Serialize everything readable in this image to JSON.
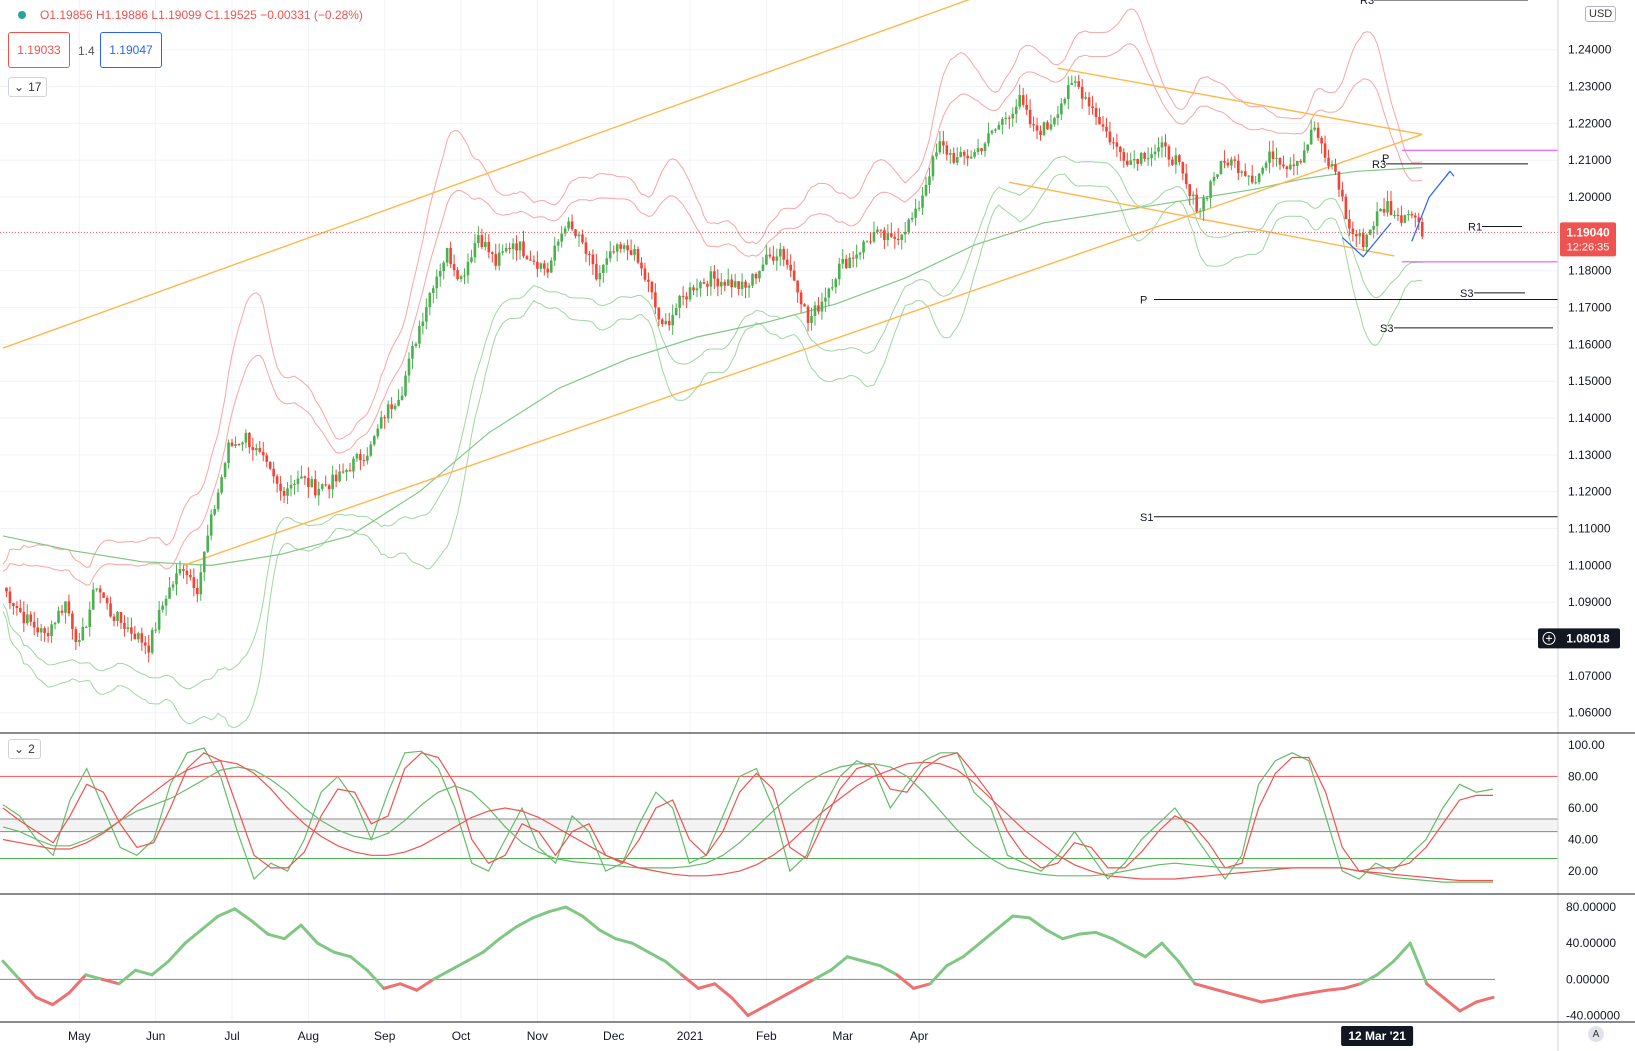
{
  "header": {
    "ohlc_text": "O1.19856 H1.19886 L1.19099 C1.19525 −0.00331 (−0.28%)",
    "sell_price": "1.19033",
    "spread": "1.4",
    "buy_price": "1.19047",
    "indicator_count_main": "17",
    "indicator_count_osc": "2",
    "currency": "USD",
    "auto_label": "A"
  },
  "price_axis": {
    "ticks": [
      "1.24000",
      "1.23000",
      "1.22000",
      "1.21000",
      "1.20000",
      "1.19000",
      "1.18000",
      "1.17000",
      "1.16000",
      "1.15000",
      "1.14000",
      "1.13000",
      "1.12000",
      "1.11000",
      "1.10000",
      "1.09000",
      "1.08000",
      "1.07000",
      "1.06000"
    ],
    "last_price": "1.19040",
    "countdown": "12:26:35",
    "crosshair_price": "1.08018"
  },
  "osc1_axis": {
    "ticks": [
      "100.00",
      "80.00",
      "60.00",
      "40.00",
      "20.00"
    ]
  },
  "osc2_axis": {
    "ticks": [
      "80.00000",
      "40.00000",
      "0.00000",
      "-40.00000"
    ]
  },
  "time_axis": {
    "labels": [
      "May",
      "Jun",
      "Jul",
      "Aug",
      "Sep",
      "Oct",
      "Nov",
      "Dec",
      "2021",
      "Feb",
      "Mar",
      "Apr"
    ],
    "crosshair_date": "12 Mar '21"
  },
  "pivot_labels": {
    "r3_top": "R3",
    "p_right": "P",
    "r3_right": "R3",
    "r1_right": "R1",
    "s3_right": "S3",
    "p_left": "P",
    "s3_left": "S3",
    "s1_left": "S1"
  },
  "colors": {
    "up": "#26a69a",
    "down": "#ef5350",
    "up_candle": "#4caf50",
    "down_candle": "#f44336",
    "trend": "#ffb74d",
    "magenta": "#e040fb",
    "blue": "#2962ff",
    "bb_upper": "#f7a6a6",
    "bb_lower": "#9fd7a1",
    "ma": "#81c784",
    "grid": "#f0f3fa"
  },
  "chart_data": [
    {
      "type": "candlestick",
      "title": "",
      "xlabel": "",
      "ylabel": "",
      "ylim": [
        1.0545,
        1.2535
      ],
      "x_months": [
        "May",
        "Jun",
        "Jul",
        "Aug",
        "Sep",
        "Oct",
        "Nov",
        "Dec",
        "2021",
        "Feb",
        "Mar",
        "Apr"
      ],
      "close_path": [
        [
          0,
          1.094
        ],
        [
          6,
          1.086
        ],
        [
          12,
          1.081
        ],
        [
          18,
          1.09
        ],
        [
          22,
          1.078
        ],
        [
          27,
          1.095
        ],
        [
          31,
          1.087
        ],
        [
          36,
          1.083
        ],
        [
          42,
          1.078
        ],
        [
          47,
          1.092
        ],
        [
          52,
          1.1
        ],
        [
          56,
          1.094
        ],
        [
          60,
          1.112
        ],
        [
          65,
          1.132
        ],
        [
          70,
          1.135
        ],
        [
          75,
          1.128
        ],
        [
          80,
          1.12
        ],
        [
          85,
          1.124
        ],
        [
          90,
          1.121
        ],
        [
          96,
          1.123
        ],
        [
          100,
          1.127
        ],
        [
          106,
          1.132
        ],
        [
          110,
          1.141
        ],
        [
          115,
          1.148
        ],
        [
          120,
          1.165
        ],
        [
          124,
          1.177
        ],
        [
          128,
          1.185
        ],
        [
          132,
          1.178
        ],
        [
          137,
          1.19
        ],
        [
          142,
          1.182
        ],
        [
          147,
          1.188
        ],
        [
          152,
          1.184
        ],
        [
          157,
          1.18
        ],
        [
          162,
          1.193
        ],
        [
          167,
          1.187
        ],
        [
          171,
          1.178
        ],
        [
          176,
          1.185
        ],
        [
          181,
          1.186
        ],
        [
          186,
          1.176
        ],
        [
          190,
          1.164
        ],
        [
          194,
          1.17
        ],
        [
          199,
          1.176
        ],
        [
          204,
          1.178
        ],
        [
          209,
          1.177
        ],
        [
          214,
          1.175
        ],
        [
          219,
          1.182
        ],
        [
          224,
          1.186
        ],
        [
          229,
          1.176
        ],
        [
          232,
          1.166
        ],
        [
          236,
          1.172
        ],
        [
          241,
          1.181
        ],
        [
          246,
          1.185
        ],
        [
          251,
          1.19
        ],
        [
          256,
          1.188
        ],
        [
          260,
          1.192
        ],
        [
          263,
          1.195
        ],
        [
          267,
          1.207
        ],
        [
          270,
          1.214
        ],
        [
          275,
          1.21
        ],
        [
          280,
          1.212
        ],
        [
          285,
          1.217
        ],
        [
          289,
          1.222
        ],
        [
          293,
          1.226
        ],
        [
          297,
          1.218
        ],
        [
          301,
          1.219
        ],
        [
          305,
          1.226
        ],
        [
          309,
          1.231
        ],
        [
          313,
          1.226
        ],
        [
          317,
          1.219
        ],
        [
          321,
          1.213
        ],
        [
          325,
          1.21
        ],
        [
          329,
          1.212
        ],
        [
          334,
          1.213
        ],
        [
          338,
          1.21
        ],
        [
          342,
          1.2
        ],
        [
          345,
          1.197
        ],
        [
          349,
          1.206
        ],
        [
          353,
          1.21
        ],
        [
          357,
          1.208
        ],
        [
          361,
          1.205
        ],
        [
          366,
          1.212
        ],
        [
          370,
          1.209
        ],
        [
          374,
          1.211
        ],
        [
          378,
          1.219
        ],
        [
          381,
          1.21
        ],
        [
          384,
          1.207
        ],
        [
          388,
          1.191
        ],
        [
          392,
          1.188
        ],
        [
          396,
          1.195
        ],
        [
          399,
          1.198
        ],
        [
          402,
          1.194
        ],
        [
          406,
          1.197
        ],
        [
          409,
          1.19
        ]
      ],
      "ma_path": [
        [
          0,
          1.108
        ],
        [
          20,
          1.104
        ],
        [
          40,
          1.101
        ],
        [
          60,
          1.1
        ],
        [
          80,
          1.103
        ],
        [
          100,
          1.108
        ],
        [
          120,
          1.12
        ],
        [
          140,
          1.136
        ],
        [
          160,
          1.148
        ],
        [
          180,
          1.156
        ],
        [
          200,
          1.162
        ],
        [
          220,
          1.166
        ],
        [
          240,
          1.171
        ],
        [
          260,
          1.178
        ],
        [
          280,
          1.187
        ],
        [
          300,
          1.193
        ],
        [
          320,
          1.196
        ],
        [
          340,
          1.199
        ],
        [
          360,
          1.202
        ],
        [
          375,
          1.205
        ],
        [
          390,
          1.207
        ],
        [
          409,
          1.208
        ]
      ],
      "trendlines": [
        {
          "from": [
            0,
            1.159
          ],
          "to": [
            409,
            1.298
          ]
        },
        {
          "from": [
            52,
            1.1
          ],
          "to": [
            409,
            1.217
          ]
        },
        {
          "from": [
            290,
            1.204
          ],
          "to": [
            401,
            1.184
          ]
        },
        {
          "from": [
            304,
            1.235
          ],
          "to": [
            409,
            1.217
          ]
        }
      ],
      "horizontal_levels": [
        {
          "label": "R3",
          "value": 1.2535
        },
        {
          "label": "R3",
          "value": 1.209
        },
        {
          "label": "R1",
          "value": 1.192
        },
        {
          "label": "S3",
          "value": 1.174
        },
        {
          "label": "P",
          "value": 1.1722
        },
        {
          "label": "S3",
          "value": 1.1645
        },
        {
          "label": "S1",
          "value": 1.1132
        }
      ],
      "magenta_levels": [
        1.2127,
        1.1824
      ],
      "last_price": 1.1904
    },
    {
      "type": "line",
      "title": "",
      "ylim": [
        8,
        105
      ],
      "ticks": [
        100,
        80,
        60,
        40,
        20
      ],
      "reference_lines": [
        80,
        53,
        45,
        28
      ],
      "series": [
        {
          "values": [
            62,
            55,
            40,
            30,
            65,
            85,
            60,
            35,
            30,
            40,
            75,
            95,
            98,
            80,
            45,
            15,
            25,
            20,
            40,
            70,
            80,
            65,
            40,
            70,
            95,
            96,
            85,
            60,
            25,
            20,
            40,
            60,
            35,
            25,
            55,
            45,
            20,
            25,
            50,
            70,
            60,
            25,
            30,
            55,
            80,
            85,
            60,
            20,
            30,
            60,
            80,
            90,
            85,
            60,
            75,
            90,
            95,
            95,
            70,
            60,
            30,
            25,
            20,
            30,
            45,
            30,
            15,
            25,
            40,
            50,
            60,
            45,
            30,
            15,
            30,
            75,
            90,
            95,
            90,
            55,
            20,
            15,
            25,
            20,
            30,
            40,
            60,
            75,
            70,
            72
          ]
        },
        {
          "values": [
            60,
            52,
            45,
            38,
            55,
            75,
            70,
            50,
            35,
            38,
            60,
            85,
            95,
            90,
            60,
            30,
            22,
            22,
            32,
            55,
            72,
            70,
            50,
            55,
            85,
            95,
            92,
            75,
            40,
            25,
            30,
            50,
            45,
            30,
            45,
            50,
            30,
            25,
            40,
            60,
            65,
            40,
            30,
            45,
            70,
            82,
            72,
            35,
            28,
            50,
            72,
            85,
            88,
            72,
            70,
            85,
            92,
            95,
            82,
            68,
            45,
            30,
            22,
            25,
            38,
            35,
            22,
            22,
            32,
            45,
            55,
            50,
            38,
            22,
            25,
            60,
            82,
            92,
            92,
            70,
            35,
            20,
            22,
            22,
            25,
            35,
            50,
            65,
            68,
            68
          ]
        },
        {
          "values": [
            48,
            45,
            40,
            36,
            36,
            40,
            45,
            52,
            58,
            62,
            66,
            72,
            78,
            84,
            86,
            84,
            78,
            70,
            60,
            52,
            46,
            42,
            40,
            44,
            52,
            62,
            70,
            74,
            70,
            60,
            48,
            38,
            32,
            28,
            26,
            25,
            24,
            23,
            22,
            22,
            22,
            23,
            25,
            30,
            38,
            48,
            58,
            68,
            76,
            82,
            86,
            88,
            88,
            86,
            80,
            70,
            58,
            46,
            36,
            28,
            22,
            20,
            18,
            17,
            17,
            17,
            18,
            20,
            22,
            24,
            25,
            24,
            23,
            22,
            22,
            22,
            22,
            22,
            22,
            22,
            22,
            20,
            18,
            16,
            15,
            14,
            13,
            13,
            13,
            13
          ]
        },
        {
          "values": [
            40,
            38,
            36,
            34,
            34,
            38,
            44,
            52,
            62,
            70,
            78,
            84,
            88,
            90,
            88,
            82,
            72,
            60,
            50,
            42,
            36,
            32,
            30,
            30,
            32,
            36,
            42,
            48,
            54,
            58,
            60,
            58,
            54,
            48,
            42,
            36,
            30,
            26,
            22,
            20,
            18,
            17,
            17,
            18,
            20,
            24,
            30,
            38,
            48,
            58,
            66,
            74,
            80,
            84,
            88,
            89,
            88,
            84,
            76,
            66,
            56,
            46,
            38,
            30,
            24,
            20,
            17,
            16,
            15,
            15,
            15,
            16,
            17,
            18,
            19,
            20,
            21,
            22,
            22,
            22,
            22,
            20,
            19,
            18,
            17,
            16,
            15,
            14,
            14,
            14
          ]
        }
      ]
    },
    {
      "type": "line",
      "title": "",
      "ylim": [
        -45,
        90
      ],
      "ticks": [
        80,
        40,
        0,
        -40
      ],
      "zero_line": 0,
      "values": [
        20,
        0,
        -20,
        -28,
        -15,
        5,
        0,
        -5,
        10,
        5,
        20,
        40,
        55,
        70,
        78,
        65,
        50,
        45,
        60,
        40,
        30,
        25,
        10,
        -10,
        -5,
        -12,
        0,
        10,
        20,
        30,
        45,
        58,
        68,
        75,
        80,
        70,
        55,
        45,
        40,
        30,
        20,
        5,
        -10,
        -5,
        -20,
        -40,
        -30,
        -20,
        -10,
        0,
        10,
        25,
        20,
        15,
        5,
        -10,
        -5,
        15,
        25,
        40,
        55,
        70,
        68,
        55,
        45,
        50,
        52,
        45,
        35,
        25,
        40,
        20,
        -5,
        -10,
        -15,
        -20,
        -25,
        -22,
        -18,
        -15,
        -12,
        -10,
        -5,
        5,
        20,
        40,
        -5,
        -20,
        -35,
        -25,
        -20
      ]
    }
  ]
}
